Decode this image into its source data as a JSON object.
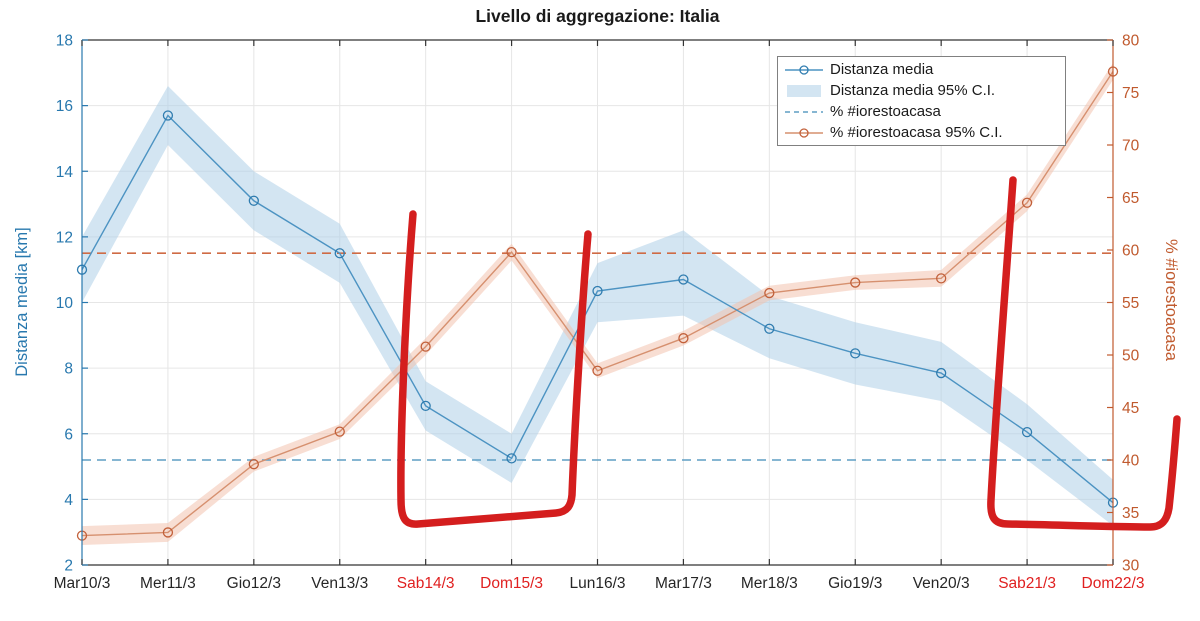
{
  "title": "Livello di aggregazione: Italia",
  "legend": {
    "items": [
      {
        "label": "Distanza media",
        "swatch": "line-marker-blue"
      },
      {
        "label": "Distanza media 95% C.I.",
        "swatch": "patch-blue"
      },
      {
        "label": "% #iorestoacasa",
        "swatch": "dashed-blue"
      },
      {
        "label": "% #iorestoacasa 95% C.I.",
        "swatch": "line-marker-orange"
      }
    ]
  },
  "chart_data": {
    "type": "line",
    "title": "Livello di aggregazione: Italia",
    "categories": [
      "Mar10/3",
      "Mer11/3",
      "Gio12/3",
      "Ven13/3",
      "Sab14/3",
      "Dom15/3",
      "Lun16/3",
      "Mar17/3",
      "Mer18/3",
      "Gio19/3",
      "Ven20/3",
      "Sab21/3",
      "Dom22/3"
    ],
    "weekend_indices": [
      4,
      5,
      11,
      12
    ],
    "left_axis": {
      "label": "Distanza media [km]",
      "min": 2,
      "max": 18,
      "ticks": [
        2,
        4,
        6,
        8,
        10,
        12,
        14,
        16,
        18
      ]
    },
    "right_axis": {
      "label": "% #iorestoacasa",
      "min": 30,
      "max": 80,
      "ticks": [
        30,
        35,
        40,
        45,
        50,
        55,
        60,
        65,
        70,
        75,
        80
      ]
    },
    "grid": true,
    "legend_position": "top-right",
    "series": [
      {
        "name": "Distanza media",
        "axis": "left",
        "values": [
          11.0,
          15.7,
          13.1,
          11.5,
          6.85,
          5.25,
          10.35,
          10.7,
          9.2,
          8.45,
          7.85,
          6.05,
          3.9
        ],
        "ci_lower": [
          10.0,
          14.8,
          12.2,
          10.6,
          6.1,
          4.5,
          9.4,
          9.6,
          8.3,
          7.5,
          7.0,
          5.2,
          3.2
        ],
        "ci_upper": [
          12.0,
          16.6,
          14.0,
          12.4,
          7.6,
          6.0,
          11.2,
          12.2,
          10.2,
          9.4,
          8.8,
          6.9,
          4.6
        ]
      },
      {
        "name": "% #iorestoacasa",
        "axis": "right",
        "values": [
          32.8,
          33.1,
          39.6,
          42.7,
          50.8,
          59.8,
          48.5,
          51.6,
          55.9,
          56.9,
          57.3,
          64.5,
          77.0
        ],
        "ci_lower": [
          31.9,
          32.2,
          38.9,
          42.0,
          50.0,
          59.0,
          47.8,
          50.9,
          55.2,
          56.2,
          56.5,
          63.7,
          76.2
        ],
        "ci_upper": [
          33.7,
          34.0,
          40.3,
          43.4,
          51.6,
          60.6,
          49.2,
          52.3,
          56.6,
          57.6,
          58.1,
          65.3,
          77.8
        ]
      }
    ],
    "reference_lines": [
      {
        "axis": "left",
        "value": 5.2,
        "style": "dashed",
        "series": "Distanza media"
      },
      {
        "axis": "right",
        "value": 59.7,
        "style": "dashed",
        "series": "% #iorestoacasa"
      }
    ],
    "annotations": [
      {
        "name": "red-bracket-weekend-1",
        "spans": [
          "Sab14/3",
          "Dom15/3"
        ]
      },
      {
        "name": "red-bracket-weekend-2",
        "spans": [
          "Sab21/3",
          "Dom22/3"
        ]
      }
    ]
  },
  "colors": {
    "blue_line": "#4C93C2",
    "blue_marker": "#2F7CAF",
    "blue_band": "#AFCFE8",
    "orange_line": "#D6906F",
    "orange_marker": "#C2603A",
    "orange_band": "#F2C3AE",
    "blue_dashed": "#5E9EC4",
    "orange_dashed": "#CF6B45",
    "left_axis": "#2878AE",
    "right_axis": "#C05A2E",
    "x_axis": "#333333",
    "grid": "#E6E6E6",
    "weekend_label": "#E02020",
    "label_dark": "#262626",
    "annotation_red": "#D41E1E",
    "title": "#1a1a1a"
  }
}
